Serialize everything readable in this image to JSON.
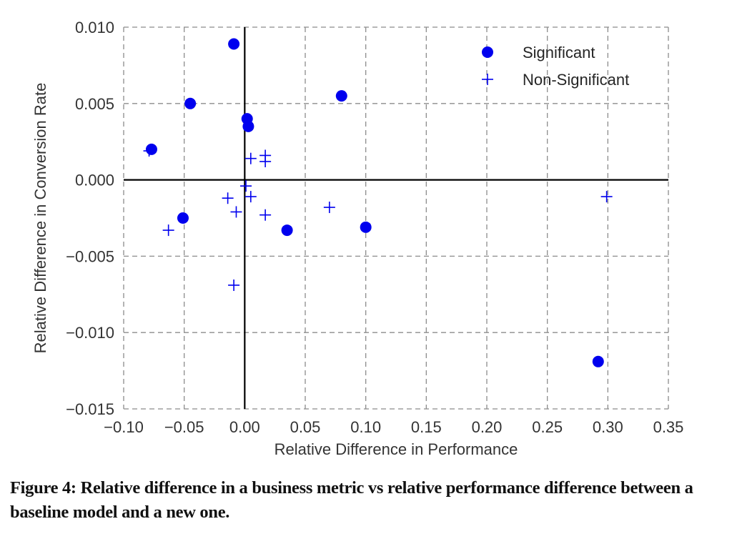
{
  "chart_data": {
    "type": "scatter",
    "title": "",
    "xlabel": "Relative Difference in Performance",
    "ylabel": "Relative Difference in Conversion Rate",
    "xlim": [
      -0.1,
      0.35
    ],
    "ylim": [
      -0.015,
      0.01
    ],
    "grid": true,
    "legend_position": "top-right",
    "x_ticks": [
      "−0.10",
      "−0.05",
      "0.00",
      "0.05",
      "0.10",
      "0.15",
      "0.20",
      "0.25",
      "0.30",
      "0.35"
    ],
    "x_tick_values": [
      -0.1,
      -0.05,
      0.0,
      0.05,
      0.1,
      0.15,
      0.2,
      0.25,
      0.3,
      0.35
    ],
    "y_ticks": [
      "0.010",
      "0.005",
      "0.000",
      "−0.005",
      "−0.010",
      "−0.015"
    ],
    "y_tick_values": [
      0.01,
      0.005,
      0.0,
      -0.005,
      -0.01,
      -0.015
    ],
    "series": [
      {
        "name": "Significant",
        "marker": "circle",
        "color": "#0000ee",
        "x": [
          -0.009,
          -0.045,
          -0.077,
          0.002,
          0.003,
          0.08,
          -0.051,
          0.035,
          0.1,
          0.292
        ],
        "y": [
          0.0089,
          0.005,
          0.002,
          0.004,
          0.0035,
          0.0055,
          -0.0025,
          -0.0033,
          -0.0031,
          -0.0119
        ]
      },
      {
        "name": "Non-Significant",
        "marker": "plus",
        "color": "#0000ee",
        "x": [
          -0.079,
          0.005,
          0.017,
          0.017,
          0.001,
          -0.014,
          0.005,
          -0.007,
          0.017,
          -0.063,
          0.07,
          -0.009,
          0.299
        ],
        "y": [
          0.0019,
          0.0014,
          0.0016,
          0.0012,
          -0.0004,
          -0.0012,
          -0.0011,
          -0.0021,
          -0.0023,
          -0.0033,
          -0.0018,
          -0.0069,
          -0.0011
        ]
      }
    ]
  },
  "caption": "Figure 4: Relative difference in a business metric vs relative performance difference between a baseline model and a new one."
}
